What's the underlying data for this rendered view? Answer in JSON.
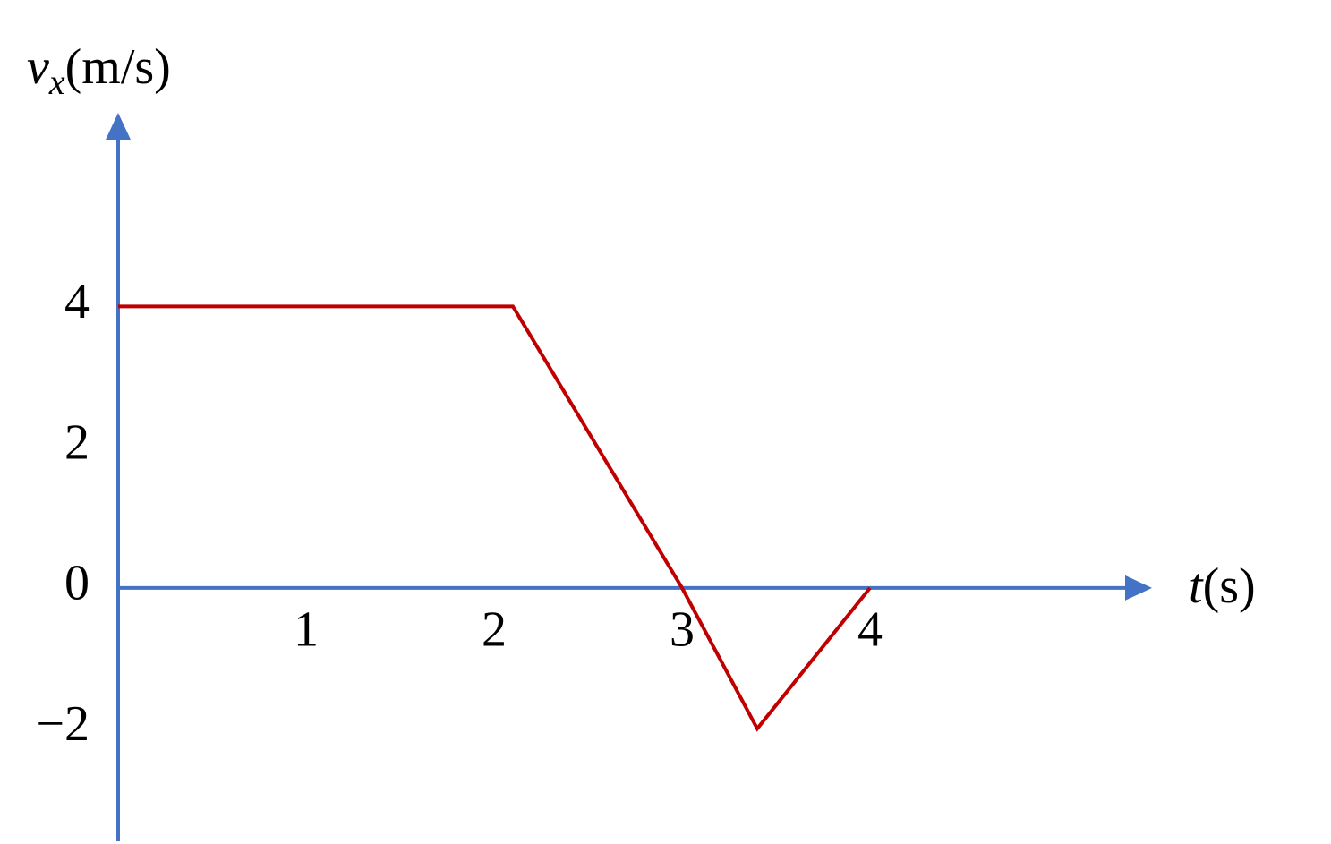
{
  "chart_data": {
    "type": "line",
    "ylabel": {
      "var": "v",
      "sub": "x",
      "unit": "(m/s)"
    },
    "xlabel": {
      "var": "t",
      "unit": "(s)"
    },
    "x": [
      0,
      2.1,
      3,
      3.4,
      4
    ],
    "series": [
      {
        "color": "#c00000",
        "values": [
          4,
          4,
          0,
          -2,
          0
        ]
      }
    ],
    "xlim": [
      0,
      5.5
    ],
    "ylim": [
      -3.6,
      6.7
    ],
    "xticks": [
      1,
      2,
      3,
      4
    ],
    "yticks": [
      4,
      2,
      0,
      {
        "value": -2,
        "label": "−2"
      }
    ],
    "axis_color": "#4472c4",
    "grid": false
  }
}
